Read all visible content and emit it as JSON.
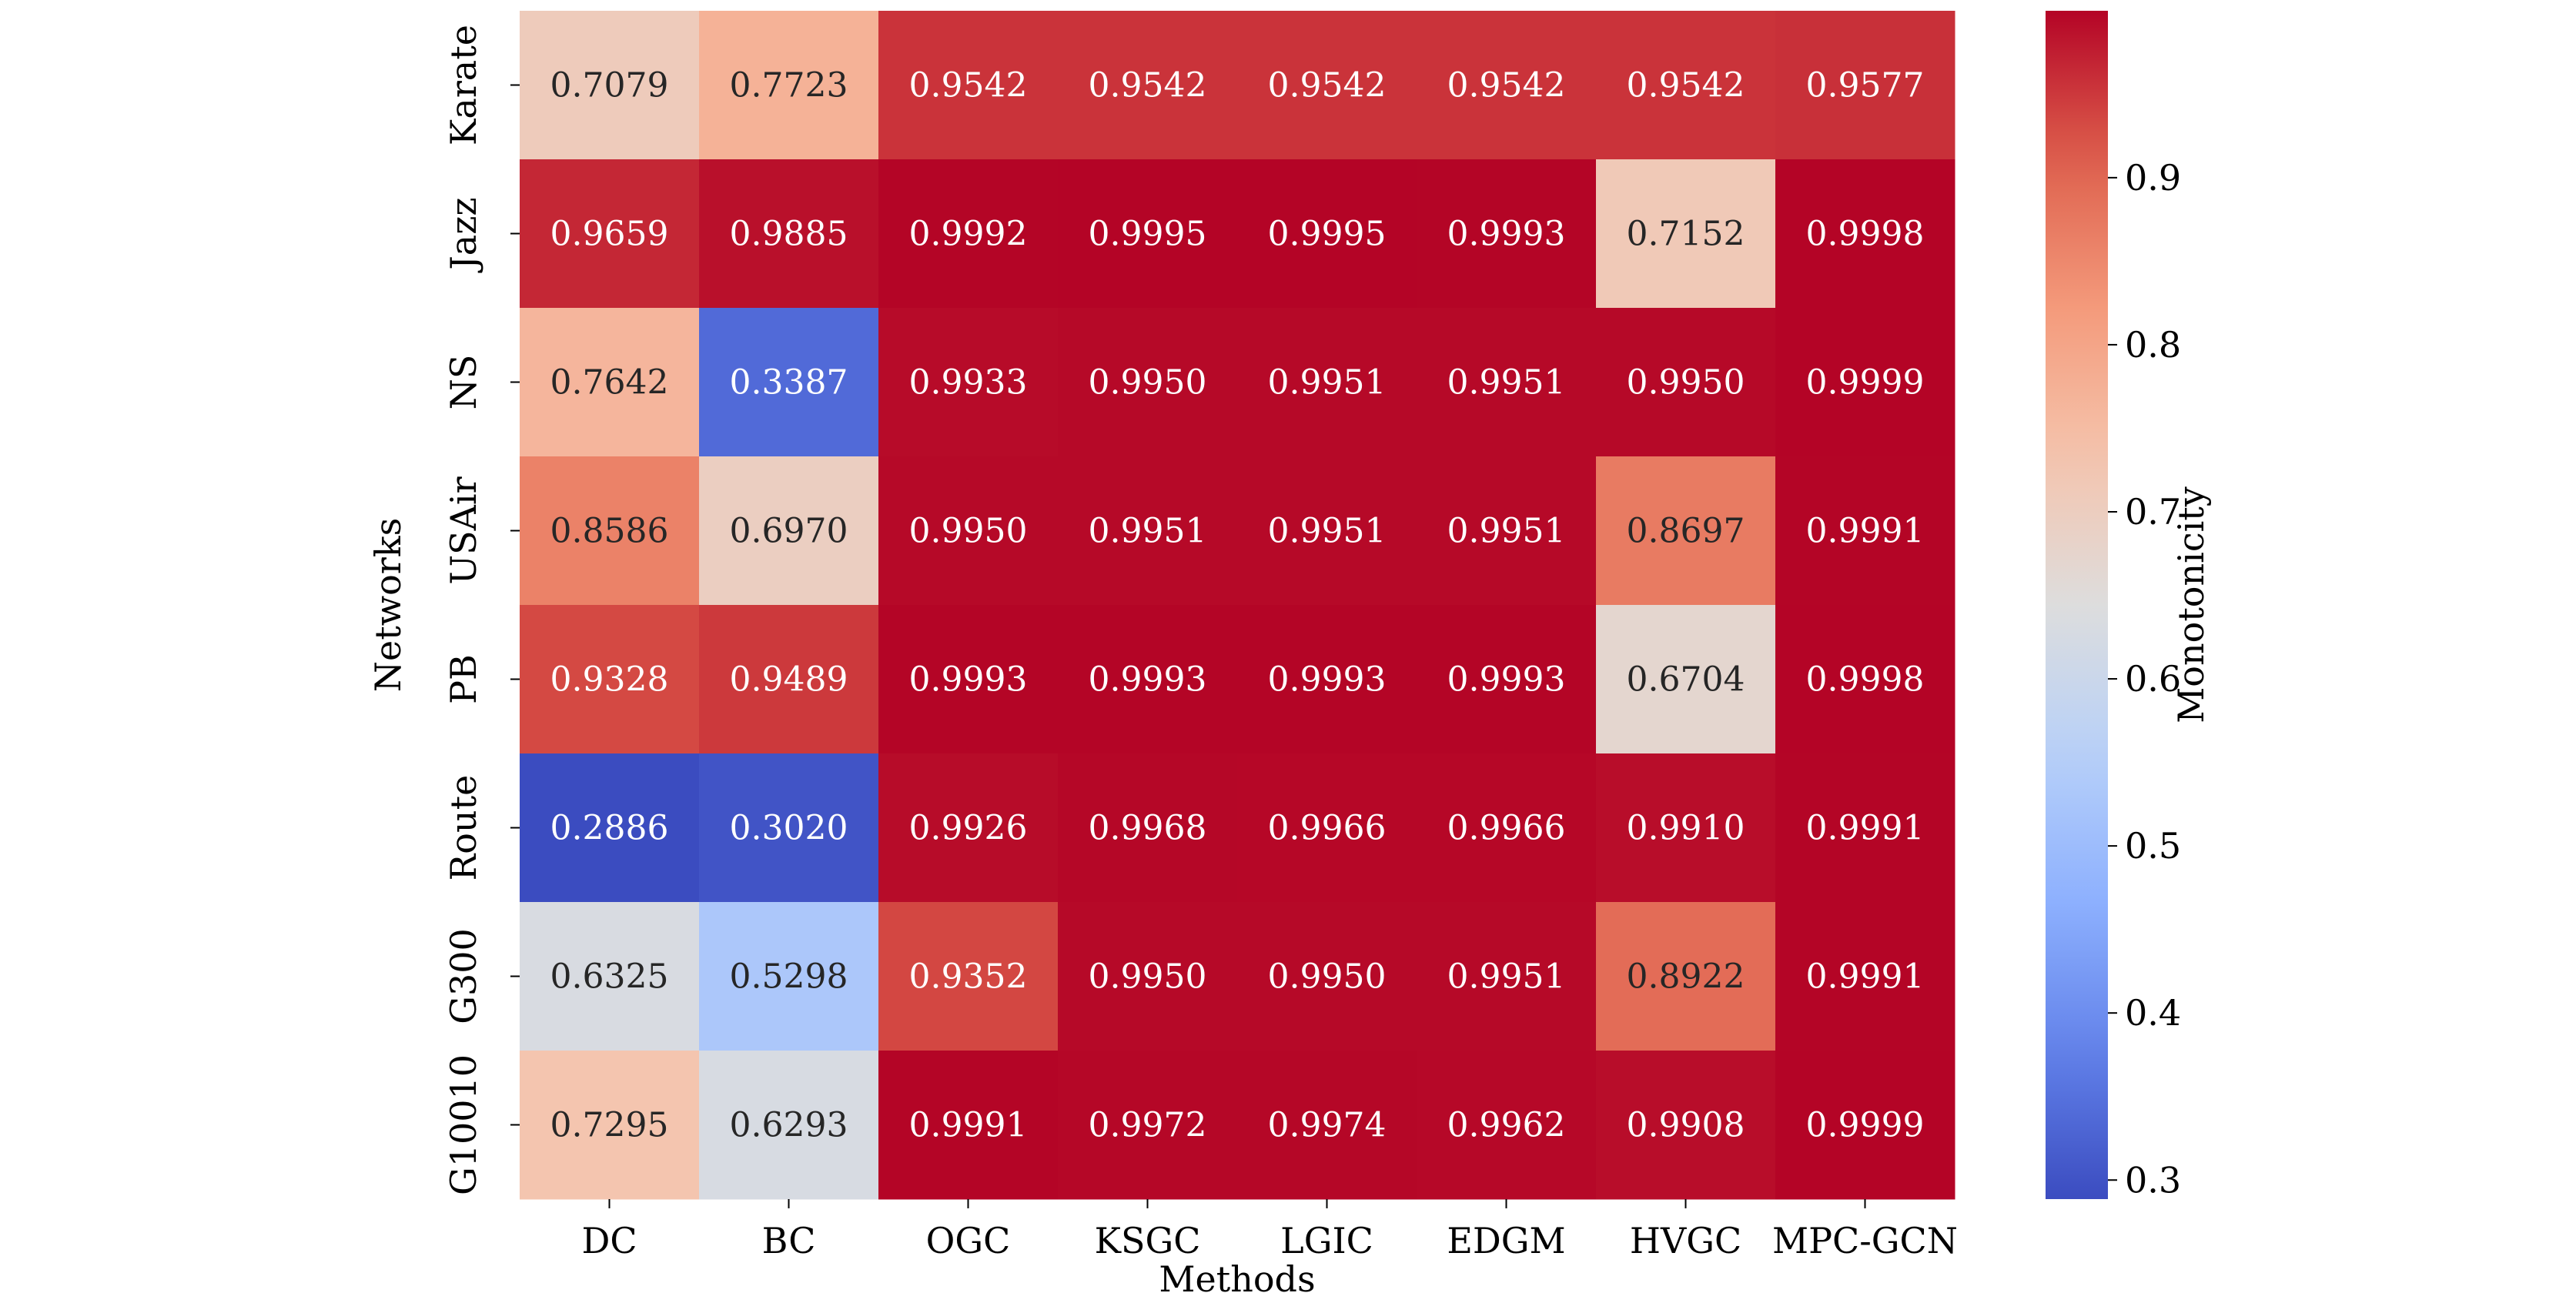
{
  "chart_data": {
    "type": "heatmap",
    "xlabel": "Methods",
    "ylabel": "Networks",
    "colorbar_label": "Monotonicity",
    "columns": [
      "DC",
      "BC",
      "OGC",
      "KSGC",
      "LGIC",
      "EDGM",
      "HVGC",
      "MPC-GCN"
    ],
    "rows": [
      "Karate",
      "Jazz",
      "NS",
      "USAir",
      "PB",
      "Route",
      "G300",
      "G10010"
    ],
    "values": [
      [
        0.7079,
        0.7723,
        0.9542,
        0.9542,
        0.9542,
        0.9542,
        0.9542,
        0.9577
      ],
      [
        0.9659,
        0.9885,
        0.9992,
        0.9995,
        0.9995,
        0.9993,
        0.7152,
        0.9998
      ],
      [
        0.7642,
        0.3387,
        0.9933,
        0.995,
        0.9951,
        0.9951,
        0.995,
        0.9999
      ],
      [
        0.8586,
        0.697,
        0.995,
        0.9951,
        0.9951,
        0.9951,
        0.8697,
        0.9991
      ],
      [
        0.9328,
        0.9489,
        0.9993,
        0.9993,
        0.9993,
        0.9993,
        0.6704,
        0.9998
      ],
      [
        0.2886,
        0.302,
        0.9926,
        0.9968,
        0.9966,
        0.9966,
        0.991,
        0.9991
      ],
      [
        0.6325,
        0.5298,
        0.9352,
        0.995,
        0.995,
        0.9951,
        0.8922,
        0.9991
      ],
      [
        0.7295,
        0.6293,
        0.9991,
        0.9972,
        0.9974,
        0.9962,
        0.9908,
        0.9999
      ]
    ],
    "value_labels": [
      [
        "0.7079",
        "0.7723",
        "0.9542",
        "0.9542",
        "0.9542",
        "0.9542",
        "0.9542",
        "0.9577"
      ],
      [
        "0.9659",
        "0.9885",
        "0.9992",
        "0.9995",
        "0.9995",
        "0.9993",
        "0.7152",
        "0.9998"
      ],
      [
        "0.7642",
        "0.3387",
        "0.9933",
        "0.9950",
        "0.9951",
        "0.9951",
        "0.9950",
        "0.9999"
      ],
      [
        "0.8586",
        "0.6970",
        "0.9950",
        "0.9951",
        "0.9951",
        "0.9951",
        "0.8697",
        "0.9991"
      ],
      [
        "0.9328",
        "0.9489",
        "0.9993",
        "0.9993",
        "0.9993",
        "0.9993",
        "0.6704",
        "0.9998"
      ],
      [
        "0.2886",
        "0.3020",
        "0.9926",
        "0.9968",
        "0.9966",
        "0.9966",
        "0.9910",
        "0.9991"
      ],
      [
        "0.6325",
        "0.5298",
        "0.9352",
        "0.9950",
        "0.9950",
        "0.9951",
        "0.8922",
        "0.9991"
      ],
      [
        "0.7295",
        "0.6293",
        "0.9991",
        "0.9972",
        "0.9974",
        "0.9962",
        "0.9908",
        "0.9999"
      ]
    ],
    "colormap": "coolwarm",
    "vmin": 0.2886,
    "vmax": 0.9999,
    "colorbar_ticks": [
      "0.3",
      "0.4",
      "0.5",
      "0.6",
      "0.7",
      "0.8",
      "0.9"
    ],
    "colorbar_tick_values": [
      0.3,
      0.4,
      0.5,
      0.6,
      0.7,
      0.8,
      0.9
    ]
  }
}
